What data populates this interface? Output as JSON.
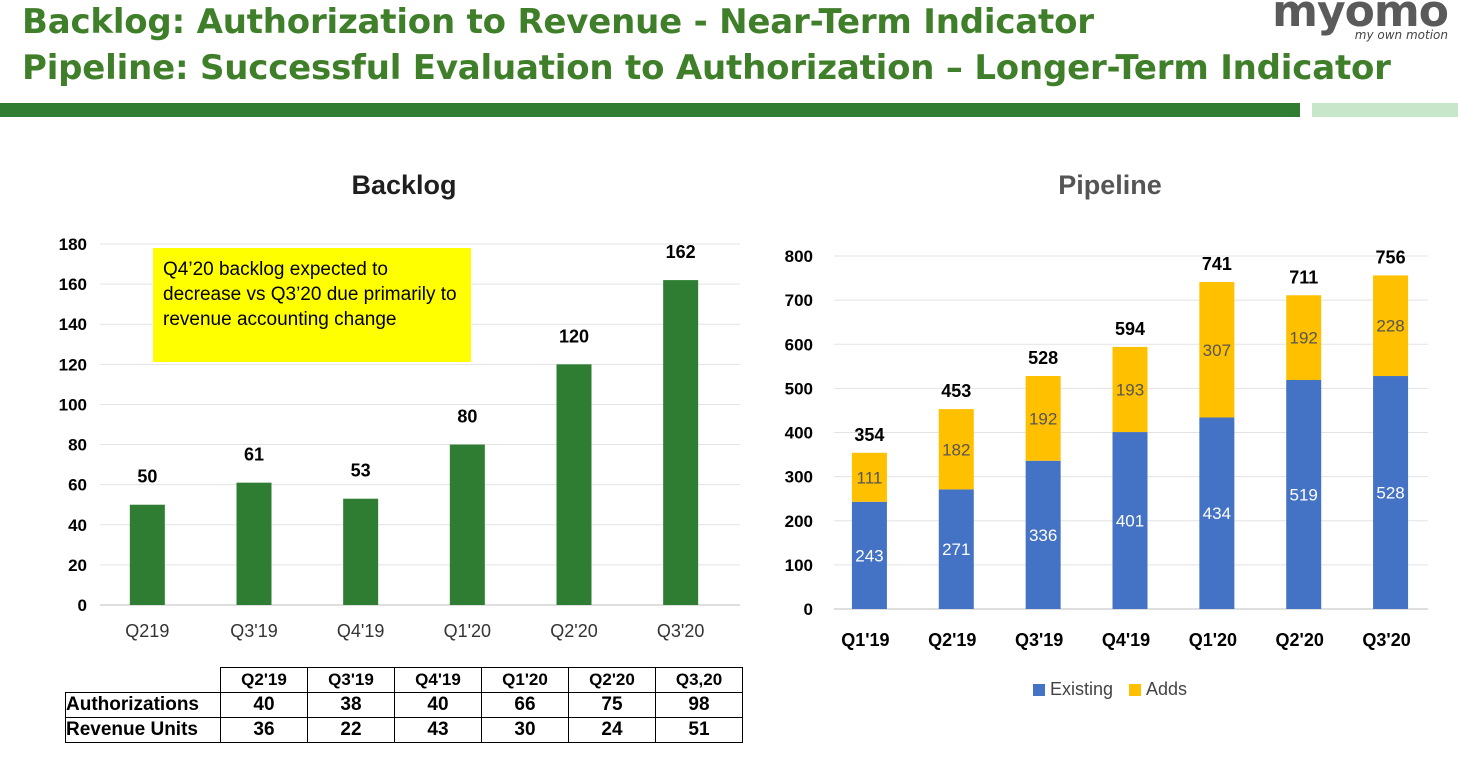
{
  "header": {
    "title_line1": "Backlog:  Authorization to Revenue -  Near-Term Indicator",
    "title_line2": "Pipeline: Successful Evaluation to Authorization – Longer-Term Indicator",
    "logo_text": "myomo",
    "logo_tagline": "my own motion"
  },
  "colors": {
    "brand_green": "#3f7f2a",
    "bar_green": "#2e7d32",
    "existing_blue": "#4472c4",
    "adds_gold": "#ffc000"
  },
  "note": {
    "text": "Q4’20 backlog expected to decrease vs Q3’20 due primarily to revenue accounting change"
  },
  "chart_data": [
    {
      "type": "bar",
      "title": "Backlog",
      "categories": [
        "Q219",
        "Q3'19",
        "Q4'19",
        "Q1'20",
        "Q2'20",
        "Q3'20"
      ],
      "values": [
        50,
        61,
        53,
        80,
        120,
        162
      ],
      "ylim": [
        0,
        180
      ],
      "yticks": [
        0,
        20,
        40,
        60,
        80,
        100,
        120,
        140,
        160,
        180
      ],
      "grid": true,
      "data_labels": true
    },
    {
      "type": "bar",
      "stacked": true,
      "title": "Pipeline",
      "categories": [
        "Q1'19",
        "Q2'19",
        "Q3'19",
        "Q4'19",
        "Q1'20",
        "Q2'20",
        "Q3'20"
      ],
      "series": [
        {
          "name": "Existing",
          "values": [
            243,
            271,
            336,
            401,
            434,
            519,
            528
          ]
        },
        {
          "name": "Adds",
          "values": [
            111,
            182,
            192,
            193,
            307,
            192,
            228
          ]
        }
      ],
      "totals": [
        354,
        453,
        528,
        594,
        741,
        711,
        756
      ],
      "ylim": [
        0,
        800
      ],
      "yticks": [
        0,
        100,
        200,
        300,
        400,
        500,
        600,
        700,
        800
      ],
      "grid": true,
      "legend": "bottom"
    }
  ],
  "table": {
    "columns": [
      "Q2'19",
      "Q3'19",
      "Q4'19",
      "Q1'20",
      "Q2'20",
      "Q3,20"
    ],
    "rows": [
      {
        "label": "Authorizations",
        "values": [
          "40",
          "38",
          "40",
          "66",
          "75",
          "98"
        ]
      },
      {
        "label": "Revenue Units",
        "values": [
          "36",
          "22",
          "43",
          "30",
          "24",
          "51"
        ]
      }
    ]
  }
}
